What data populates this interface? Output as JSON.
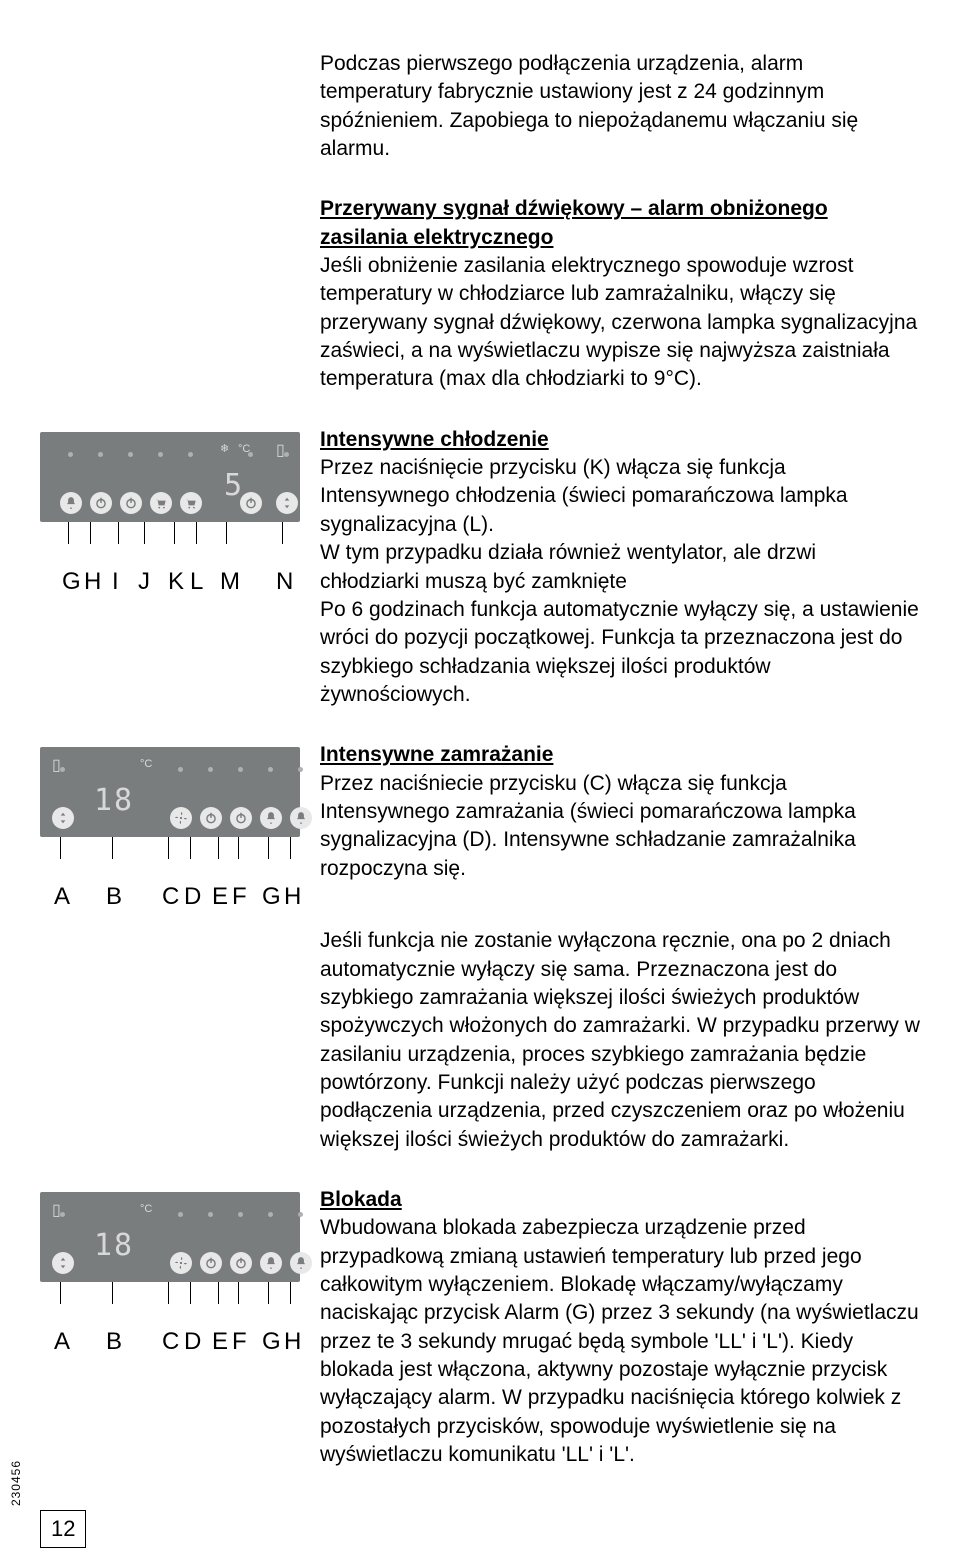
{
  "para_intro": "Podczas pierwszego podłączenia urządzenia, alarm temperatury fabrycznie ustawiony jest z 24 godzinnym spóźnieniem. Zapobiega to niepożądanemu włączaniu się alarmu.",
  "alarm": {
    "heading": "Przerywany sygnał dźwiękowy – alarm obniżonego zasilania elektrycznego",
    "body": "Jeśli obniżenie zasilania elektrycznego spowoduje wzrost temperatury w chłodziarce lub zamrażalniku, włączy się przerywany sygnał dźwiękowy, czerwona lampka sygnalizacyjna zaświeci, a na wyświetlaczu wypisze się najwyższa zaistniała temperatura (max dla chłodziarki to 9°C)."
  },
  "cooling": {
    "heading": "Intensywne chłodzenie",
    "body": "Przez naciśnięcie przycisku (K) włącza się funkcja Intensywnego chłodzenia (świeci pomarańczowa lampka sygnalizacyjna (L).\nW tym przypadku działa również wentylator, ale drzwi chłodziarki muszą być zamknięte\nPo 6 godzinach funkcja automatycznie wyłączy się,  a ustawienie wróci do pozycji początkowej. Funkcja ta przeznaczona jest do szybkiego schładzania większej ilości produktów żywnościowych."
  },
  "freezing": {
    "heading": "Intensywne zamrażanie",
    "body": "Przez naciśniecie przycisku (C) włącza się funkcja Intensywnego zamrażania (świeci pomarańczowa lampka sygnalizacyjna (D). Intensywne schładzanie zamrażalnika rozpoczyna się."
  },
  "freezing2": "Jeśli funkcja nie zostanie wyłączona ręcznie, ona po 2 dniach automatycznie wyłączy się sama. Przeznaczona jest do szybkiego zamrażania większej ilości świeżych produktów spożywczych włożonych do zamrażarki. W przypadku przerwy w zasilaniu urządzenia, proces szybkiego zamrażania będzie powtórzony. Funkcji należy użyć podczas pierwszego podłączenia urządzenia, przed czyszczeniem oraz po włożeniu większej ilości świeżych produktów do zamrażarki.",
  "lock": {
    "heading": "Blokada",
    "body": "Wbudowana blokada zabezpiecza urządzenie przed przypadkową zmianą ustawień temperatury lub przed jego całkowitym wyłączeniem. Blokadę włączamy/wyłączamy naciskając przycisk Alarm (G) przez 3 sekundy (na wyświetlaczu przez te 3 sekundy mrugać będą symbole 'LL' i 'L'). Kiedy blokada jest włączona, aktywny pozostaje wyłącznie przycisk wyłączający alarm. W przypadku naciśnięcia którego kolwiek z  pozostałych przycisków, spowoduje wyświetlenie się na wyświetlaczu komunikatu 'LL' i 'L'."
  },
  "panel1": {
    "display": "5",
    "deg_label": "°C",
    "letters": [
      "G",
      "H",
      "I",
      "J",
      "K",
      "L",
      "M",
      "N"
    ],
    "letter_x": [
      22,
      44,
      72,
      98,
      128,
      150,
      180,
      236
    ],
    "btn_x": [
      20,
      50,
      80,
      110,
      140,
      200,
      236
    ],
    "dot_x": [
      26,
      56,
      86,
      116,
      146,
      206,
      242
    ]
  },
  "panel2": {
    "display": "18",
    "deg_label": "°C",
    "letters": [
      "A",
      "B",
      "C",
      "D",
      "E",
      "F",
      "G",
      "H"
    ],
    "letter_x": [
      14,
      66,
      122,
      144,
      172,
      192,
      222,
      244
    ],
    "btn_x": [
      12,
      130,
      160,
      190,
      220,
      250
    ],
    "dot_x": [
      18,
      136,
      166,
      196,
      226,
      256
    ]
  },
  "page_number": "12",
  "side_code": "230456"
}
